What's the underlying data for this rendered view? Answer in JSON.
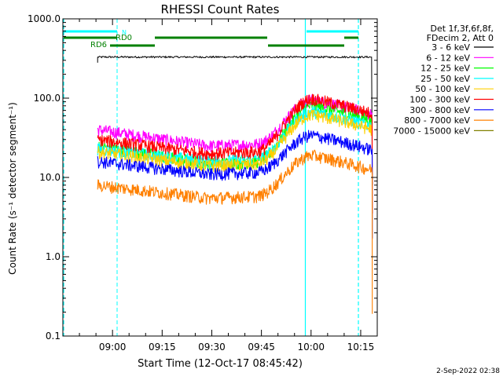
{
  "chart_data": {
    "type": "line",
    "title": "RHESSI Count Rates",
    "xlabel": "Start Time (12-Oct-17 08:45:42)",
    "ylabel": "Count Rate (s⁻¹ detector segment⁻¹)",
    "yscale": "log",
    "ylim": [
      0.1,
      1000.0
    ],
    "xlim_minutes_after_0845": [
      0,
      95
    ],
    "xticks": [
      {
        "label": "09:00",
        "minutes": 15
      },
      {
        "label": "09:15",
        "minutes": 30
      },
      {
        "label": "09:30",
        "minutes": 45
      },
      {
        "label": "09:45",
        "minutes": 60
      },
      {
        "label": "10:00",
        "minutes": 75
      },
      {
        "label": "10:15",
        "minutes": 90
      }
    ],
    "yticks": [
      {
        "label": "1000.0",
        "value": 1000
      },
      {
        "label": "100.0",
        "value": 100
      },
      {
        "label": "10.0",
        "value": 10
      },
      {
        "label": "1.0",
        "value": 1
      },
      {
        "label": "0.1",
        "value": 0.1
      }
    ],
    "legend_header": [
      "Det 1f,3f,6f,8f,",
      "FDecim 2, Att 0"
    ],
    "legend_placement": "top-right outside plot",
    "series": [
      {
        "name": "3 - 6 keV",
        "color": "#000000",
        "baseline": 330
      },
      {
        "name": "6 - 12 keV",
        "color": "#ff00ff",
        "start": 40,
        "min": 25,
        "peak": 95
      },
      {
        "name": "12 - 25 keV",
        "color": "#00ff00",
        "start": 25,
        "min": 15,
        "peak": 80
      },
      {
        "name": "25 - 50 keV",
        "color": "#00ffff",
        "start": 23,
        "min": 16,
        "peak": 68
      },
      {
        "name": "50 - 100 keV",
        "color": "#ffd000",
        "start": 21,
        "min": 14,
        "peak": 62
      },
      {
        "name": "100 - 300 keV",
        "color": "#ff0000",
        "start": 30,
        "min": 20,
        "peak": 98
      },
      {
        "name": "300 - 800 keV",
        "color": "#0000ff",
        "start": 16,
        "min": 11,
        "peak": 34
      },
      {
        "name": "800 - 7000 keV",
        "color": "#ff8000",
        "start": 8,
        "min": 5.5,
        "peak": 19
      },
      {
        "name": "7000 - 15000 keV",
        "color": "#808000"
      }
    ],
    "flags": [
      {
        "label": "N",
        "color": "#00ffff"
      },
      {
        "label": "RD0",
        "color": "#008000"
      },
      {
        "label": "RD6",
        "color": "#008000"
      }
    ]
  },
  "footer": {
    "timestamp": "2-Sep-2022 02:38"
  },
  "colors": {
    "flag_cyan": "#00ffff",
    "flag_green": "#008000",
    "axis": "#000000",
    "background": "#ffffff"
  }
}
